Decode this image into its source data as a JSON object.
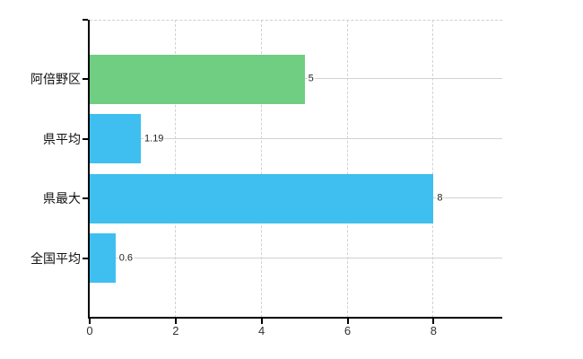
{
  "chart_data": {
    "type": "bar",
    "orientation": "horizontal",
    "title": "",
    "xlabel": "",
    "ylabel": "",
    "categories": [
      "阿倍野区",
      "県平均",
      "県最大",
      "全国平均"
    ],
    "values": [
      5,
      1.19,
      8,
      0.6
    ],
    "value_labels": [
      "5",
      "1.19",
      "8",
      "0.6"
    ],
    "bar_colors": [
      "#6fce81",
      "#3ebfef",
      "#3ebfef",
      "#3ebfef"
    ],
    "x_ticks": [
      "0",
      "2",
      "4",
      "6",
      "8"
    ],
    "x_tick_values": [
      0,
      2,
      4,
      6,
      8
    ],
    "xlim": [
      0,
      9.6
    ],
    "legend": "none",
    "grid": {
      "vertical": "dashed",
      "horizontal": "solid lines at each bar center",
      "top_border": "dashed"
    }
  },
  "colors": {
    "background": "#ffffff",
    "axis": "#000000",
    "vertical_gridline": "#d6cfd6",
    "horizontal_gridline": "#ccd5cc",
    "green_bar": "#6fce81",
    "blue_bar": "#3ebfef",
    "label_text": "#111111"
  }
}
